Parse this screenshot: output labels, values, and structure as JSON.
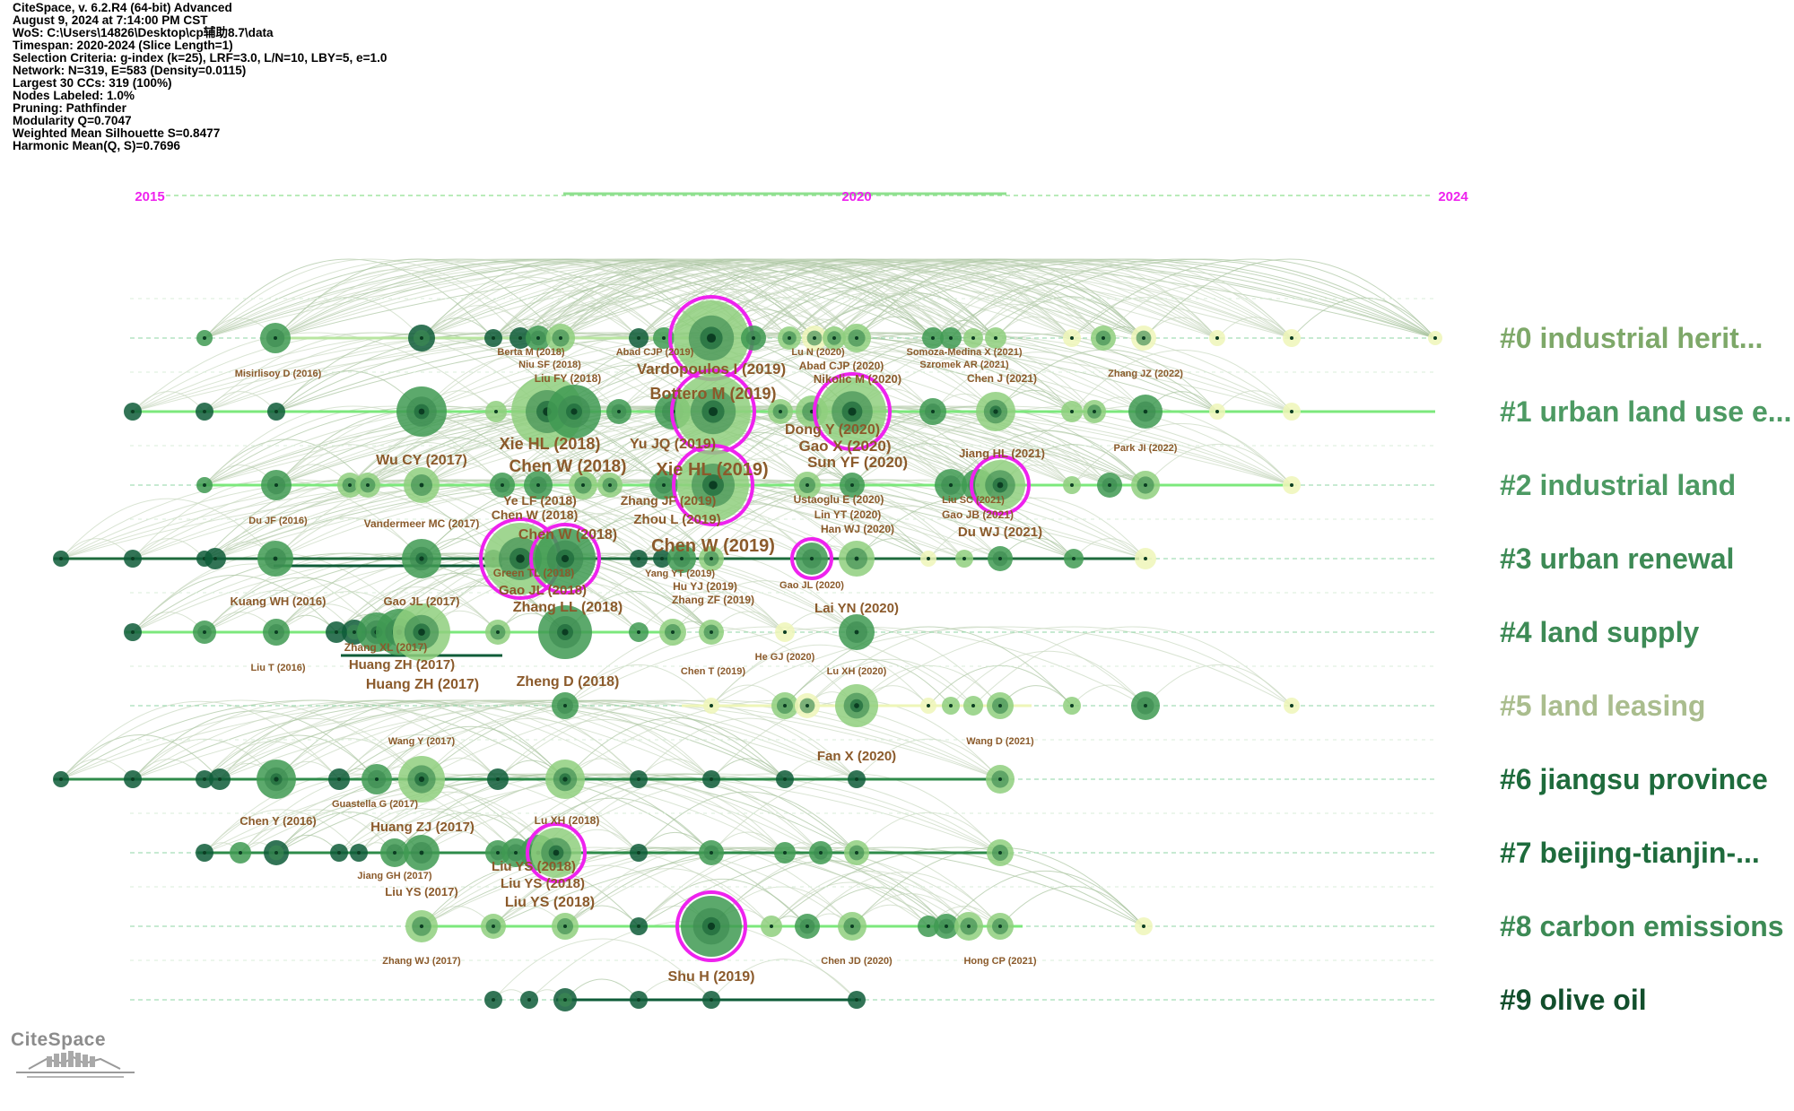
{
  "info": {
    "lines": [
      "CiteSpace, v. 6.2.R4 (64-bit) Advanced",
      "August 9, 2024 at 7:14:00 PM CST",
      "WoS: C:\\Users\\14826\\Desktop\\cp辅助8.7\\data",
      "Timespan: 2020-2024 (Slice Length=1)",
      "Selection Criteria: g-index (k=25), LRF=3.0, L/N=10, LBY=5, e=1.0",
      "Network: N=319, E=583 (Density=0.0115)",
      "Largest 30 CCs: 319 (100%)",
      "Nodes Labeled: 1.0%",
      "Pruning: Pathfinder",
      "Modularity Q=0.7047",
      "Weighted Mean Silhouette S=0.8477",
      "Harmonic Mean(Q, S)=0.7696"
    ]
  },
  "years": [
    "2015",
    "2020",
    "2024"
  ],
  "colors": {
    "magenta": "#ee22ee",
    "label_brown": "#8b5a2b",
    "lane_line": "#8fe08f",
    "dark_green": "#0e5c38",
    "mid_green": "#3f9a52",
    "light_green": "#8fcf7e",
    "pale_yellow": "#eef6b8"
  },
  "clusters": [
    {
      "label": "#0 industrial herit...",
      "color": "#7ea869"
    },
    {
      "label": "#1 urban land use e...",
      "color": "#4d9a63"
    },
    {
      "label": "#2 industrial land",
      "color": "#4d9a63"
    },
    {
      "label": "#3 urban renewal",
      "color": "#3d8a55"
    },
    {
      "label": "#4 land supply",
      "color": "#3d8a55"
    },
    {
      "label": "#5 land leasing",
      "color": "#aabd8e"
    },
    {
      "label": "#6 jiangsu province",
      "color": "#1e6b3c"
    },
    {
      "label": "#7 beijing-tianjin-...",
      "color": "#1e6b3c"
    },
    {
      "label": "#8 carbon emissions",
      "color": "#3d8a55"
    },
    {
      "label": "#9 olive oil",
      "color": "#124f2c"
    }
  ],
  "node_labels": [
    {
      "text": "Misirlisoy D (2016)"
    },
    {
      "text": "Berta M (2018)"
    },
    {
      "text": "Niu SF (2018)"
    },
    {
      "text": "Liu FY (2018)"
    },
    {
      "text": "Abad CJP (2019)"
    },
    {
      "text": "Vardopoulos I (2019)"
    },
    {
      "text": "Lu N (2020)"
    },
    {
      "text": "Abad CJP (2020)"
    },
    {
      "text": "Nikolic M (2020)"
    },
    {
      "text": "Somoza-Medina X (2021)"
    },
    {
      "text": "Szromek AR (2021)"
    },
    {
      "text": "Chen J (2021)"
    },
    {
      "text": "Zhang JZ (2022)"
    },
    {
      "text": "Bottero M (2019)"
    },
    {
      "text": "Dong Y (2020)"
    },
    {
      "text": "Xie HL (2018)"
    },
    {
      "text": "Yu JQ (2019)"
    },
    {
      "text": "Gao X (2020)"
    },
    {
      "text": "Park JI (2022)"
    },
    {
      "text": "Wu CY (2017)"
    },
    {
      "text": "Chen W (2018)"
    },
    {
      "text": "Xie HL (2019)"
    },
    {
      "text": "Sun YF (2020)"
    },
    {
      "text": "Jiang HL (2021)"
    },
    {
      "text": "Ye LF (2018)"
    },
    {
      "text": "Zhang JF (2019)"
    },
    {
      "text": "Ustaoglu E (2020)"
    },
    {
      "text": "Liu SC (2021)"
    },
    {
      "text": "Chen W (2018)"
    },
    {
      "text": "Zhou L (2019)"
    },
    {
      "text": "Lin YT (2020)"
    },
    {
      "text": "Gao JB (2021)"
    },
    {
      "text": "Du JF (2016)"
    },
    {
      "text": "Vandermeer MC (2017)"
    },
    {
      "text": "Han WJ (2020)"
    },
    {
      "text": "Du WJ (2021)"
    },
    {
      "text": "Chen W (2018)"
    },
    {
      "text": "Chen W (2019)"
    },
    {
      "text": "Green TL (2018)"
    },
    {
      "text": "Yang YT (2019)"
    },
    {
      "text": "Hu YJ (2019)"
    },
    {
      "text": "Gao JL (2020)"
    },
    {
      "text": "Gao JL (2018)"
    },
    {
      "text": "Zhang ZF (2019)"
    },
    {
      "text": "Kuang WH (2016)"
    },
    {
      "text": "Gao JL (2017)"
    },
    {
      "text": "Zhang LL (2018)"
    },
    {
      "text": "Lai YN (2020)"
    },
    {
      "text": "Zhang XL (2017)"
    },
    {
      "text": "Huang ZH (2017)"
    },
    {
      "text": "He GJ (2020)"
    },
    {
      "text": "Liu T (2016)"
    },
    {
      "text": "Chen T (2019)"
    },
    {
      "text": "Lu XH (2020)"
    },
    {
      "text": "Huang ZH (2017)"
    },
    {
      "text": "Zheng D (2018)"
    },
    {
      "text": "Wang Y (2017)"
    },
    {
      "text": "Fan X (2020)"
    },
    {
      "text": "Wang D (2021)"
    },
    {
      "text": "Guastella G (2017)"
    },
    {
      "text": "Chen Y (2016)"
    },
    {
      "text": "Huang ZJ (2017)"
    },
    {
      "text": "Lu XH (2018)"
    },
    {
      "text": "Jiang GH (2017)"
    },
    {
      "text": "Liu YS (2018)"
    },
    {
      "text": "Liu YS (2017)"
    },
    {
      "text": "Liu YS (2018)"
    },
    {
      "text": "Liu YS (2018)"
    },
    {
      "text": "Zhang WJ (2017)"
    },
    {
      "text": "Chen JD (2020)"
    },
    {
      "text": "Hong CP (2021)"
    },
    {
      "text": "Shu H (2019)"
    }
  ],
  "logo": {
    "text": "CiteSpace"
  }
}
